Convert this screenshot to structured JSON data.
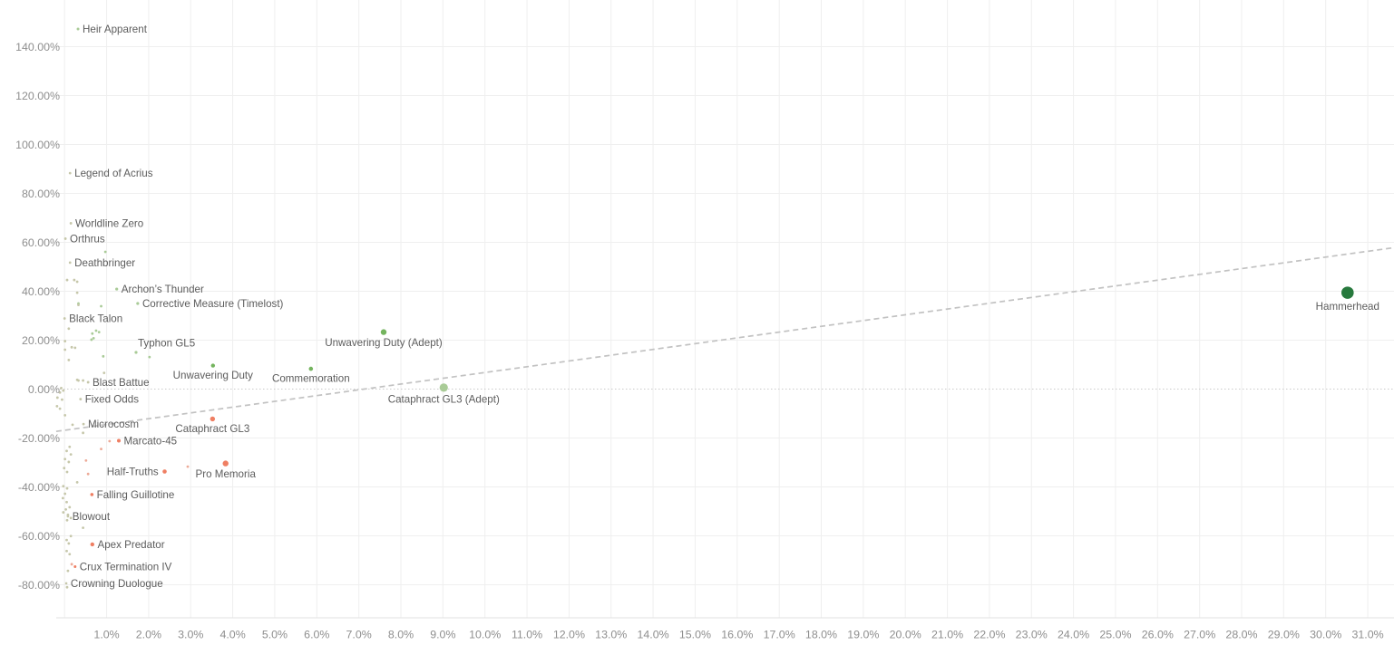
{
  "chart_data": {
    "type": "scatter",
    "title": "",
    "xlabel": "",
    "ylabel": "",
    "x_ticks": [
      {
        "label": "1.0%",
        "value": 1
      },
      {
        "label": "2.0%",
        "value": 2
      },
      {
        "label": "3.0%",
        "value": 3
      },
      {
        "label": "4.0%",
        "value": 4
      },
      {
        "label": "5.0%",
        "value": 5
      },
      {
        "label": "6.0%",
        "value": 6
      },
      {
        "label": "7.0%",
        "value": 7
      },
      {
        "label": "8.0%",
        "value": 8
      },
      {
        "label": "9.0%",
        "value": 9
      },
      {
        "label": "10.0%",
        "value": 10
      },
      {
        "label": "11.0%",
        "value": 11
      },
      {
        "label": "12.0%",
        "value": 12
      },
      {
        "label": "13.0%",
        "value": 13
      },
      {
        "label": "14.0%",
        "value": 14
      },
      {
        "label": "15.0%",
        "value": 15
      },
      {
        "label": "16.0%",
        "value": 16
      },
      {
        "label": "17.0%",
        "value": 17
      },
      {
        "label": "18.0%",
        "value": 18
      },
      {
        "label": "19.0%",
        "value": 19
      },
      {
        "label": "20.0%",
        "value": 20
      },
      {
        "label": "21.0%",
        "value": 21
      },
      {
        "label": "22.0%",
        "value": 22
      },
      {
        "label": "23.0%",
        "value": 23
      },
      {
        "label": "24.0%",
        "value": 24
      },
      {
        "label": "25.0%",
        "value": 25
      },
      {
        "label": "26.0%",
        "value": 26
      },
      {
        "label": "27.0%",
        "value": 27
      },
      {
        "label": "28.0%",
        "value": 28
      },
      {
        "label": "29.0%",
        "value": 29
      },
      {
        "label": "30.0%",
        "value": 30
      },
      {
        "label": "31.0%",
        "value": 31
      }
    ],
    "y_ticks": [
      {
        "label": "140.00%",
        "value": 140
      },
      {
        "label": "120.00%",
        "value": 120
      },
      {
        "label": "100.00%",
        "value": 100
      },
      {
        "label": "80.00%",
        "value": 80
      },
      {
        "label": "60.00%",
        "value": 60
      },
      {
        "label": "40.00%",
        "value": 40
      },
      {
        "label": "20.00%",
        "value": 20
      },
      {
        "label": "0.00%",
        "value": 0
      },
      {
        "label": "-20.00%",
        "value": -20
      },
      {
        "label": "-40.00%",
        "value": -40
      },
      {
        "label": "-60.00%",
        "value": -60
      },
      {
        "label": "-80.00%",
        "value": -80
      }
    ],
    "x_range": [
      -0.2,
      31.6
    ],
    "y_range": [
      -93.7,
      159.0
    ],
    "grid": true,
    "zero_line_y": 0,
    "trend_line": {
      "x1": -0.2,
      "y1": -17.3,
      "x2": 31.62,
      "y2": 57.8
    },
    "labeled_points": [
      {
        "name": "Heir Apparent",
        "x": 0.32,
        "y": 147.2,
        "color": "pale_green",
        "r": 1.5,
        "anchor": "right"
      },
      {
        "name": "Legend of Acrius",
        "x": 0.13,
        "y": 88.3,
        "color": "olive",
        "r": 1.4,
        "anchor": "right"
      },
      {
        "name": "Worldline Zero",
        "x": 0.15,
        "y": 67.8,
        "color": "olive",
        "r": 1.4,
        "anchor": "right"
      },
      {
        "name": "Orthrus",
        "x": 0.02,
        "y": 61.5,
        "color": "olive",
        "r": 1.4,
        "anchor": "right"
      },
      {
        "name": "Deathbringer",
        "x": 0.13,
        "y": 51.7,
        "color": "olive",
        "r": 1.4,
        "anchor": "right"
      },
      {
        "name": "Archon’s Thunder",
        "x": 1.24,
        "y": 40.9,
        "color": "pale_green",
        "r": 1.6,
        "anchor": "right"
      },
      {
        "name": "Corrective Measure (Timelost)",
        "x": 1.74,
        "y": 35.0,
        "color": "pale_green",
        "r": 1.6,
        "anchor": "right"
      },
      {
        "name": "Black Talon",
        "x": 0.0,
        "y": 28.9,
        "color": "olive",
        "r": 1.4,
        "anchor": "right"
      },
      {
        "name": "Typhon GL5",
        "x": 1.7,
        "y": 15.0,
        "color": "pale_green",
        "r": 1.6,
        "anchor": "above"
      },
      {
        "name": "Unwavering Duty",
        "x": 3.53,
        "y": 9.6,
        "color": "mid_green",
        "r": 2.2,
        "anchor": "below"
      },
      {
        "name": "Commemoration",
        "x": 5.86,
        "y": 8.3,
        "color": "mid_green",
        "r": 2.3,
        "anchor": "below"
      },
      {
        "name": "Unwavering Duty (Adept)",
        "x": 7.59,
        "y": 23.3,
        "color": "mid_green",
        "r": 3.2,
        "anchor": "below"
      },
      {
        "name": "Cataphract GL3 (Adept)",
        "x": 9.02,
        "y": 0.6,
        "color": "pale_green",
        "r": 4.6,
        "anchor": "below"
      },
      {
        "name": "Blast Battue",
        "x": 0.56,
        "y": 2.8,
        "color": "olive",
        "r": 1.4,
        "anchor": "right"
      },
      {
        "name": "Fixed Odds",
        "x": 0.38,
        "y": -4.1,
        "color": "olive",
        "r": 1.4,
        "anchor": "right"
      },
      {
        "name": "Microcosm",
        "x": 0.45,
        "y": -14.3,
        "color": "olive",
        "r": 1.4,
        "anchor": "right"
      },
      {
        "name": "Cataphract GL3",
        "x": 3.52,
        "y": -12.2,
        "color": "salmon",
        "r": 2.7,
        "anchor": "below"
      },
      {
        "name": "Marcato-45",
        "x": 1.29,
        "y": -21.1,
        "color": "salmon",
        "r": 2.0,
        "anchor": "right"
      },
      {
        "name": "Half-Truths",
        "x": 2.38,
        "y": -33.7,
        "color": "salmon",
        "r": 2.3,
        "anchor": "left"
      },
      {
        "name": "Pro Memoria",
        "x": 3.83,
        "y": -30.4,
        "color": "salmon",
        "r": 3.2,
        "anchor": "below"
      },
      {
        "name": "Falling Guillotine",
        "x": 0.65,
        "y": -43.1,
        "color": "salmon",
        "r": 1.8,
        "anchor": "right"
      },
      {
        "name": "Blowout",
        "x": 0.08,
        "y": -52.0,
        "color": "olive",
        "r": 1.4,
        "anchor": "right"
      },
      {
        "name": "Apex Predator",
        "x": 0.66,
        "y": -63.5,
        "color": "salmon",
        "r": 2.2,
        "anchor": "right"
      },
      {
        "name": "Crux Termination IV",
        "x": 0.25,
        "y": -72.6,
        "color": "salmon",
        "r": 1.5,
        "anchor": "right"
      },
      {
        "name": "Crowning Duologue",
        "x": 0.04,
        "y": -79.4,
        "color": "olive",
        "r": 1.3,
        "anchor": "right"
      },
      {
        "name": "Hammerhead",
        "x": 30.52,
        "y": 39.4,
        "color": "dark_green",
        "r": 6.8,
        "anchor": "below"
      }
    ],
    "minor_points": [
      [
        0.97,
        56.1,
        "g"
      ],
      [
        0.87,
        33.9,
        "g"
      ],
      [
        0.33,
        35.0,
        "g"
      ],
      [
        0.66,
        22.7,
        "g"
      ],
      [
        0.75,
        23.9,
        "g"
      ],
      [
        0.82,
        23.3,
        "g"
      ],
      [
        0.64,
        20.2,
        "g"
      ],
      [
        0.69,
        20.8,
        "g"
      ],
      [
        0.92,
        13.4,
        "g"
      ],
      [
        2.02,
        13.1,
        "g"
      ],
      [
        0.51,
        -29.2,
        "s"
      ],
      [
        1.07,
        -21.3,
        "s"
      ],
      [
        0.87,
        -24.5,
        "s"
      ],
      [
        2.93,
        -31.7,
        "s"
      ],
      [
        0.56,
        -34.7,
        "s"
      ],
      [
        0.17,
        -71.6,
        "s"
      ],
      [
        0.06,
        44.6,
        "o"
      ],
      [
        0.23,
        44.6,
        "o"
      ],
      [
        0.3,
        43.9,
        "o"
      ],
      [
        0.3,
        39.4,
        "o"
      ],
      [
        0.33,
        34.4,
        "o"
      ],
      [
        0.1,
        24.7,
        "o"
      ],
      [
        0.01,
        19.6,
        "o"
      ],
      [
        0.17,
        17.1,
        "o"
      ],
      [
        0.01,
        16.1,
        "o"
      ],
      [
        0.25,
        16.9,
        "o"
      ],
      [
        0.1,
        11.9,
        "o"
      ],
      [
        0.94,
        6.6,
        "o"
      ],
      [
        0.3,
        3.8,
        "o"
      ],
      [
        0.44,
        3.5,
        "o"
      ],
      [
        0.33,
        3.5,
        "o"
      ],
      [
        -0.08,
        0.4,
        "o"
      ],
      [
        -0.03,
        -0.6,
        "o"
      ],
      [
        -0.11,
        -1.4,
        "o"
      ],
      [
        -0.17,
        -3.5,
        "o"
      ],
      [
        -0.06,
        -4.3,
        "o"
      ],
      [
        -0.18,
        -7.0,
        "o"
      ],
      [
        -0.11,
        -8.0,
        "o"
      ],
      [
        0.01,
        -10.7,
        "o"
      ],
      [
        0.19,
        -14.6,
        "o"
      ],
      [
        0.44,
        -17.9,
        "o"
      ],
      [
        0.12,
        -23.6,
        "o"
      ],
      [
        0.05,
        -25.3,
        "o"
      ],
      [
        0.15,
        -26.7,
        "o"
      ],
      [
        0.01,
        -28.6,
        "o"
      ],
      [
        0.1,
        -29.8,
        "o"
      ],
      [
        -0.01,
        -32.3,
        "o"
      ],
      [
        0.06,
        -33.9,
        "o"
      ],
      [
        0.3,
        -38.1,
        "o"
      ],
      [
        -0.03,
        -39.7,
        "o"
      ],
      [
        0.06,
        -40.6,
        "o"
      ],
      [
        0.01,
        -42.8,
        "o"
      ],
      [
        -0.04,
        -44.6,
        "o"
      ],
      [
        0.05,
        -46.2,
        "o"
      ],
      [
        0.12,
        -48.3,
        "o"
      ],
      [
        0.03,
        -49.2,
        "o"
      ],
      [
        -0.03,
        -50.4,
        "o"
      ],
      [
        0.08,
        -51.4,
        "o"
      ],
      [
        0.15,
        -52.7,
        "o"
      ],
      [
        0.06,
        -53.6,
        "o"
      ],
      [
        0.44,
        -56.7,
        "o"
      ],
      [
        0.15,
        -60.1,
        "o"
      ],
      [
        0.05,
        -61.7,
        "o"
      ],
      [
        0.1,
        -63.1,
        "o"
      ],
      [
        0.05,
        -66.2,
        "o"
      ],
      [
        0.12,
        -67.5,
        "o"
      ],
      [
        0.08,
        -74.3,
        "o"
      ],
      [
        0.06,
        -81.0,
        "o"
      ]
    ],
    "legend_position": "none"
  },
  "colors": {
    "olive": "#c6c7aa",
    "pale_green": "#a9cb97",
    "mid_green": "#74b45e",
    "dark_green": "#27793d",
    "salmon": "#ef7f63",
    "pale_salmon": "#edaa97",
    "grid": "#efefef",
    "zero_line": "#cbcbcb",
    "trend": "#c2c2c2",
    "axis_line": "#e2e2e2",
    "axis_text": "#8e8e8e",
    "label_text": "#5c5c5c",
    "background": "#ffffff"
  }
}
